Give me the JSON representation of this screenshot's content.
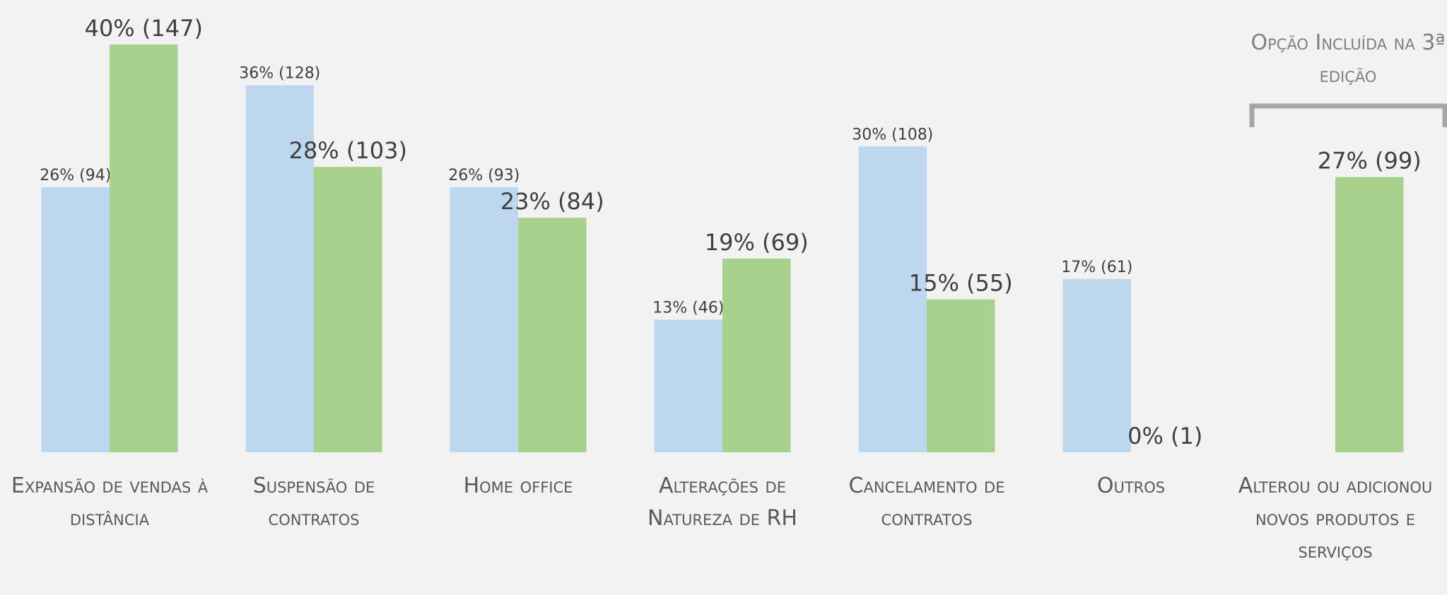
{
  "chart_data": {
    "type": "bar",
    "categories": [
      "Expansão de vendas à distância",
      "Suspensão de contratos",
      "Home office",
      "Alterações de Natureza de RH",
      "Cancelamento de contratos",
      "Outros",
      "Alterou ou adicionou novos produtos e serviços"
    ],
    "series": [
      {
        "color": "#bdd7ee",
        "values": [
          26,
          36,
          26,
          13,
          30,
          17,
          null
        ],
        "value_labels": [
          "26% (94)",
          "36% (128)",
          "26% (93)",
          "13% (46)",
          "30% (108)",
          "17% (61)",
          null
        ]
      },
      {
        "color": "#a9d18e",
        "values": [
          40,
          28,
          23,
          19,
          15,
          0,
          27
        ],
        "value_labels": [
          "40% (147)",
          "28% (103)",
          "23% (84)",
          "19% (69)",
          "15% (55)",
          "0% (1)",
          "27% (99)"
        ]
      }
    ],
    "annotation": "Opção Incluída na 3ª edição"
  }
}
